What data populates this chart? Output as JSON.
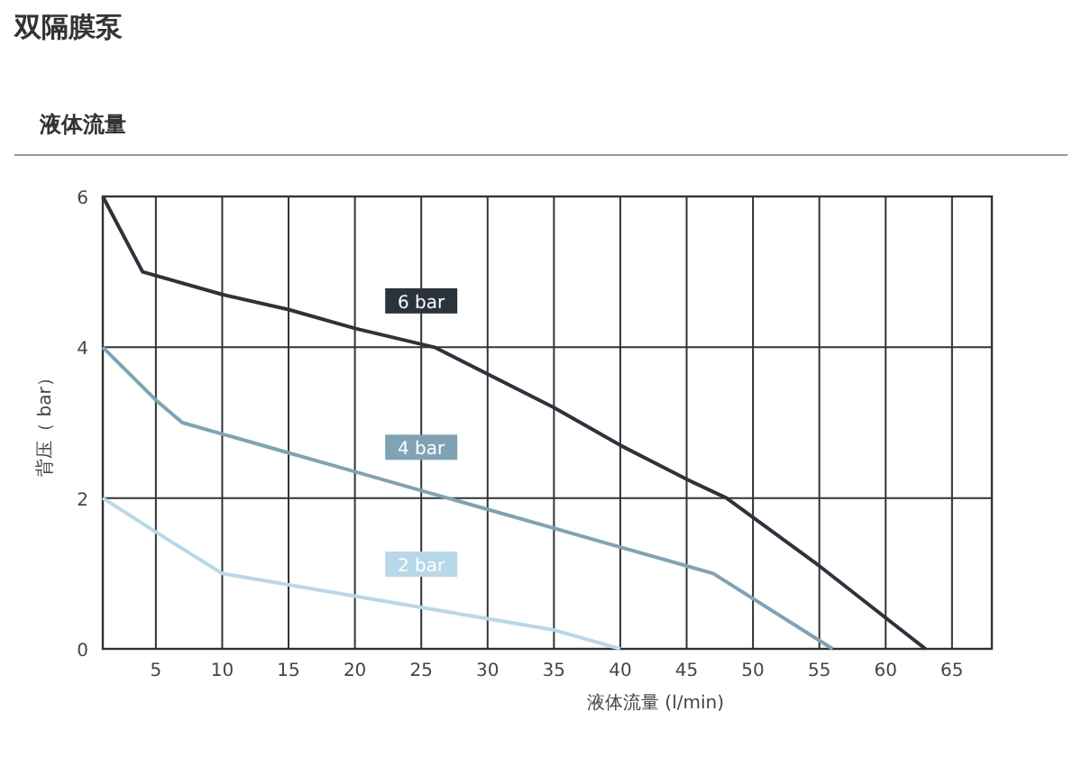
{
  "chart_data": {
    "type": "line",
    "title": "双隔膜泵",
    "subtitle": "液体流量",
    "xlabel": "液体流量 (l/min)",
    "ylabel": "背压（ bar）",
    "xlim": [
      1,
      68
    ],
    "xticks": [
      5,
      10,
      15,
      20,
      25,
      30,
      35,
      40,
      45,
      50,
      55,
      60,
      65
    ],
    "ylim": [
      0,
      6
    ],
    "yticks": [
      0,
      2,
      4,
      6
    ],
    "grid": true,
    "legend": false,
    "series": [
      {
        "name": "6 bar",
        "color": "#2b333b",
        "x": [
          1,
          4,
          10,
          15,
          20,
          26,
          35,
          40,
          45,
          48,
          55,
          63
        ],
        "values": [
          6,
          5,
          4.7,
          4.5,
          4.25,
          4.0,
          3.2,
          2.7,
          2.25,
          2.0,
          1.1,
          0
        ]
      },
      {
        "name": "4 bar",
        "color": "#7fa3b5",
        "x": [
          1,
          5,
          7,
          10,
          15,
          20,
          25,
          30,
          35,
          40,
          47,
          56
        ],
        "values": [
          4,
          3.3,
          3.0,
          2.85,
          2.6,
          2.35,
          2.1,
          1.85,
          1.6,
          1.35,
          1.0,
          0
        ]
      },
      {
        "name": "2 bar",
        "color": "#b7d8e8",
        "x": [
          1,
          5,
          10,
          15,
          20,
          25,
          30,
          35,
          40
        ],
        "values": [
          2,
          1.55,
          1.0,
          0.85,
          0.7,
          0.55,
          0.4,
          0.25,
          0
        ]
      }
    ]
  }
}
